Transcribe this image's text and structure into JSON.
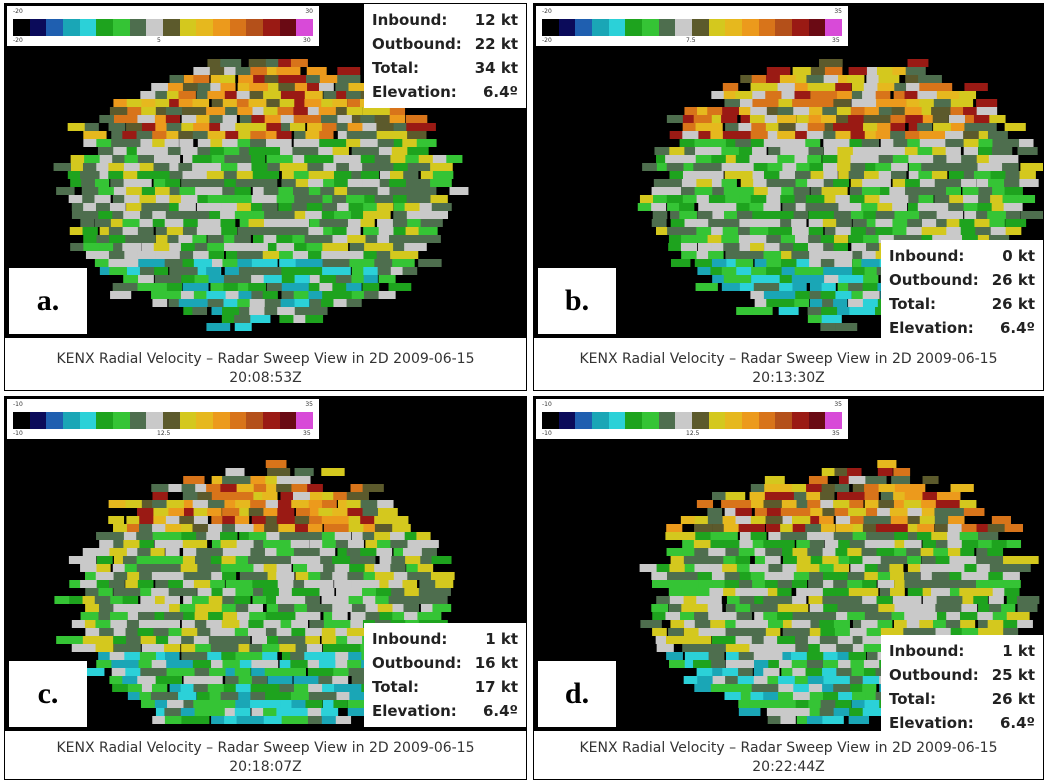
{
  "panels": [
    {
      "label": "a.",
      "colorbar": {
        "top_left": "-20",
        "top_right": "30",
        "ticks": [
          "-20",
          "5",
          "30"
        ]
      },
      "info": [
        [
          "Inbound:",
          "12 kt"
        ],
        [
          "Outbound:",
          "22 kt"
        ],
        [
          "Total:",
          "34 kt"
        ],
        [
          "Elevation:",
          "6.4º"
        ]
      ],
      "caption": [
        "KENX Radial Velocity – Radar Sweep View in 2D 2009-06-15",
        "20:08:53Z"
      ]
    },
    {
      "label": "b.",
      "colorbar": {
        "top_left": "-20",
        "top_right": "35",
        "ticks": [
          "-20",
          "7.5",
          "35"
        ]
      },
      "info": [
        [
          "Inbound:",
          "0 kt"
        ],
        [
          "Outbound:",
          "26 kt"
        ],
        [
          "Total:",
          "26 kt"
        ],
        [
          "Elevation:",
          "6.4º"
        ]
      ],
      "caption": [
        "KENX Radial Velocity – Radar Sweep View in 2D 2009-06-15",
        "20:13:30Z"
      ]
    },
    {
      "label": "c.",
      "colorbar": {
        "top_left": "-10",
        "top_right": "35",
        "ticks": [
          "-10",
          "12.5",
          "35"
        ]
      },
      "info": [
        [
          "Inbound:",
          "1 kt"
        ],
        [
          "Outbound:",
          "16 kt"
        ],
        [
          "Total:",
          "17 kt"
        ],
        [
          "Elevation:",
          "6.4º"
        ]
      ],
      "caption": [
        "KENX Radial Velocity – Radar Sweep View in 2D 2009-06-15",
        "20:18:07Z"
      ]
    },
    {
      "label": "d.",
      "colorbar": {
        "top_left": "-10",
        "top_right": "35",
        "ticks": [
          "-10",
          "12.5",
          "35"
        ]
      },
      "info": [
        [
          "Inbound:",
          "1 kt"
        ],
        [
          "Outbound:",
          "25 kt"
        ],
        [
          "Total:",
          "26 kt"
        ],
        [
          "Elevation:",
          "6.4º"
        ]
      ],
      "caption": [
        "KENX Radial Velocity – Radar Sweep View in 2D 2009-06-15",
        "20:22:44Z"
      ]
    }
  ]
}
